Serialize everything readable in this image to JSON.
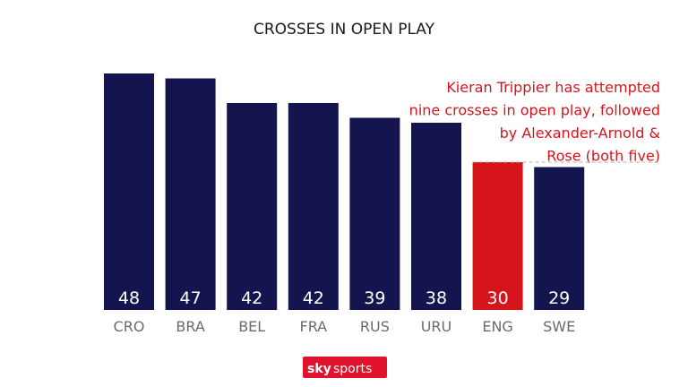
{
  "chart_data": {
    "type": "bar",
    "title": "CROSSES IN OPEN PLAY",
    "categories": [
      "CRO",
      "BRA",
      "BEL",
      "FRA",
      "RUS",
      "URU",
      "ENG",
      "SWE"
    ],
    "values": [
      48,
      47,
      42,
      42,
      39,
      38,
      30,
      29
    ],
    "highlight": "ENG",
    "xlabel": "",
    "ylabel": "",
    "ylim": [
      0,
      50
    ],
    "grid": false,
    "annotation": {
      "lines": [
        "Kieran Trippier has attempted",
        "nine crosses in open play, followed",
        "by Alexander-Arnold &",
        "Rose (both five)"
      ],
      "target": "ENG"
    }
  },
  "colors": {
    "bar": "#14154f",
    "highlight": "#d6141c",
    "label": "#6b6b6b",
    "title": "#1a1a1a",
    "annotation": "#d6141c",
    "brand_bg": "#e1122b"
  },
  "brand": {
    "sky": "sky",
    "sports": "sports"
  }
}
